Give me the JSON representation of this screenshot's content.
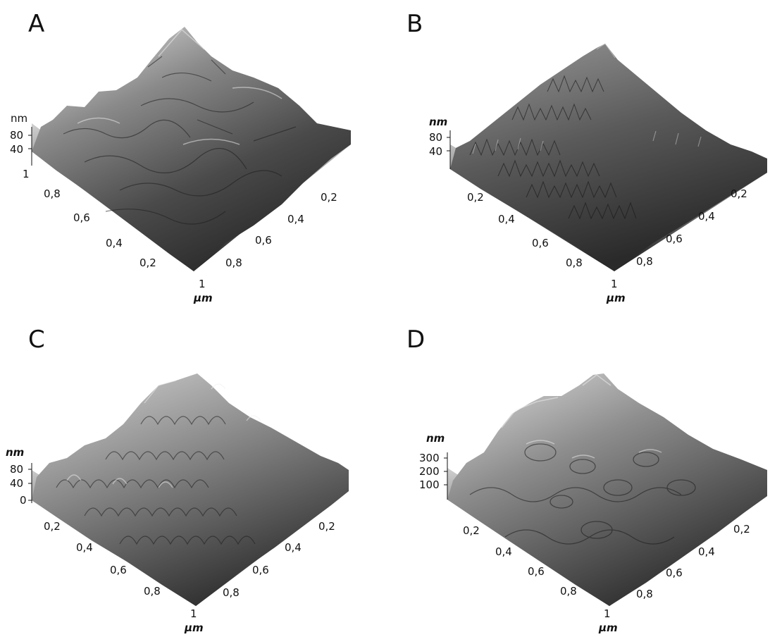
{
  "panels": [
    {
      "letter": "A",
      "z_unit": "nm",
      "z_ticks": [
        "80",
        "40"
      ],
      "left_axis_ticks": [
        "1",
        "0,8",
        "0,6",
        "0,4",
        "0,2"
      ],
      "right_axis_ticks": [
        "0,2",
        "0,4",
        "0,6",
        "0,8",
        "1"
      ],
      "xy_unit": "µm"
    },
    {
      "letter": "B",
      "z_unit": "nm",
      "z_ticks": [
        "80",
        "40"
      ],
      "left_axis_ticks": [
        "0,2",
        "0,4",
        "0,6",
        "0,8"
      ],
      "right_axis_ticks": [
        "0,2",
        "0,4",
        "0,6",
        "0,8",
        "1"
      ],
      "xy_unit": "µm"
    },
    {
      "letter": "C",
      "z_unit": "nm",
      "z_ticks": [
        "80",
        "40",
        "0"
      ],
      "left_axis_ticks": [
        "0,2",
        "0,4",
        "0,6",
        "0,8"
      ],
      "right_axis_ticks": [
        "0,2",
        "0,4",
        "0,6",
        "0,8",
        "1"
      ],
      "xy_unit": "µm"
    },
    {
      "letter": "D",
      "z_unit": "nm",
      "z_ticks": [
        "300",
        "200",
        "100"
      ],
      "left_axis_ticks": [
        "0,2",
        "0,4",
        "0,6",
        "0,8"
      ],
      "right_axis_ticks": [
        "0,2",
        "0,4",
        "0,6",
        "0,8",
        "1"
      ],
      "xy_unit": "µm"
    }
  ]
}
